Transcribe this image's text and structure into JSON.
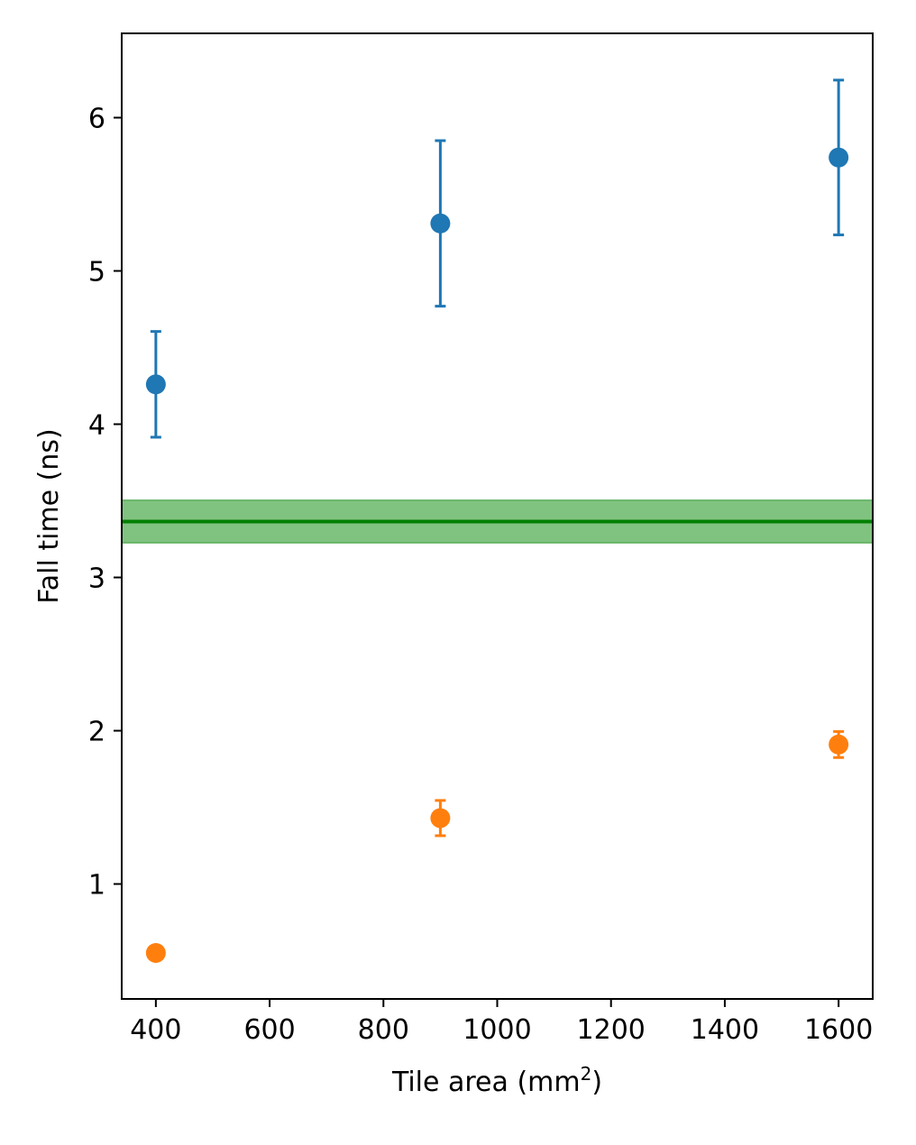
{
  "chart_data": {
    "type": "scatter",
    "title": "",
    "xlabel": "Tile area (mm",
    "xlabel_superscript": "2",
    "xlabel_suffix": ")",
    "ylabel": "Fall time (ns)",
    "xlim": [
      340,
      1660
    ],
    "ylim": [
      0.25,
      6.55
    ],
    "x_ticks": [
      400,
      600,
      800,
      1000,
      1200,
      1400,
      1600
    ],
    "x_tick_labels": [
      "400",
      "600",
      "800",
      "1000",
      "1200",
      "1400",
      "1600"
    ],
    "y_ticks": [
      1,
      2,
      3,
      4,
      5,
      6
    ],
    "y_tick_labels": [
      "1",
      "2",
      "3",
      "4",
      "5",
      "6"
    ],
    "grid": false,
    "series": [
      {
        "name": "series-blue",
        "color": "#1f77b4",
        "x": [
          400,
          900,
          1600
        ],
        "y": [
          4.26,
          5.31,
          5.74
        ],
        "yerr": [
          0.345,
          0.54,
          0.505
        ]
      },
      {
        "name": "series-orange",
        "color": "#ff7f0e",
        "x": [
          400,
          900,
          1600
        ],
        "y": [
          0.55,
          1.43,
          1.91
        ],
        "yerr": [
          0.0,
          0.115,
          0.085
        ]
      }
    ],
    "reference_band": {
      "color": "#008000",
      "fill_color": "#6ab96a",
      "value": 3.365,
      "lower": 3.225,
      "upper": 3.505
    }
  }
}
